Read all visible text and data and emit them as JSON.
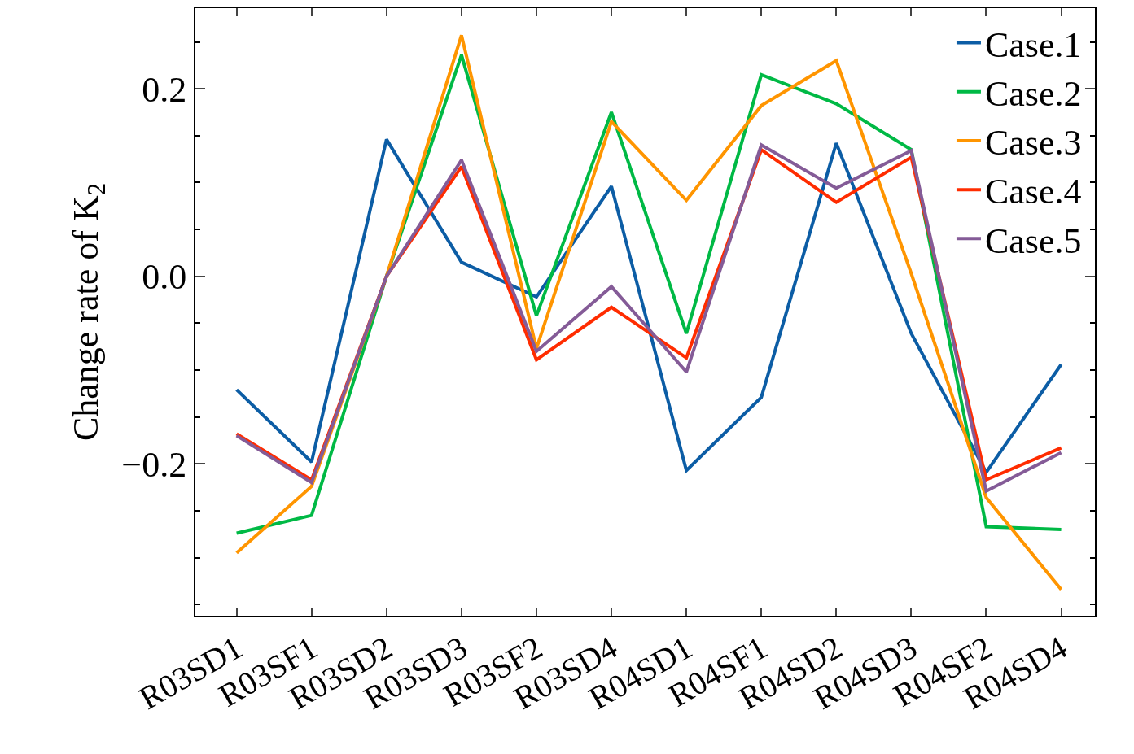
{
  "chart_data": {
    "type": "line",
    "ylabel": "Change rate of K$_{2}$",
    "categories": [
      "R03SD1",
      "R03SF1",
      "R03SD2",
      "R03SD3",
      "R03SF2",
      "R03SD4",
      "R04SD1",
      "R04SF1",
      "R04SD2",
      "R04SD3",
      "R04SF2",
      "R04SD4"
    ],
    "series": [
      {
        "name": "Case.1",
        "color": "#0c5da5",
        "values": [
          -0.121,
          -0.198,
          0.146,
          0.015,
          -0.022,
          0.096,
          -0.207,
          -0.129,
          0.142,
          -0.061,
          -0.209,
          -0.094
        ]
      },
      {
        "name": "Case.2",
        "color": "#00b945",
        "values": [
          -0.274,
          -0.255,
          0.0,
          0.236,
          -0.042,
          0.175,
          -0.061,
          0.215,
          0.184,
          0.135,
          -0.267,
          -0.27
        ]
      },
      {
        "name": "Case.3",
        "color": "#ff9500",
        "values": [
          -0.295,
          -0.224,
          0.0,
          0.257,
          -0.077,
          0.165,
          0.081,
          0.182,
          0.23,
          0.003,
          -0.236,
          -0.334
        ]
      },
      {
        "name": "Case.4",
        "color": "#ff2c00",
        "values": [
          -0.168,
          -0.217,
          0.0,
          0.117,
          -0.089,
          -0.033,
          -0.087,
          0.135,
          0.079,
          0.127,
          -0.217,
          -0.183
        ]
      },
      {
        "name": "Case.5",
        "color": "#845b97",
        "values": [
          -0.17,
          -0.22,
          0.0,
          0.124,
          -0.08,
          -0.011,
          -0.102,
          0.14,
          0.094,
          0.134,
          -0.229,
          -0.188
        ]
      }
    ],
    "ylim": [
      -0.362,
      0.286
    ],
    "yticks": [
      {
        "value": -0.35,
        "label": null
      },
      {
        "value": -0.3,
        "label": null
      },
      {
        "value": -0.25,
        "label": null
      },
      {
        "value": -0.2,
        "label": "−0.2"
      },
      {
        "value": -0.15,
        "label": null
      },
      {
        "value": -0.1,
        "label": null
      },
      {
        "value": -0.05,
        "label": null
      },
      {
        "value": 0.0,
        "label": "0.0"
      },
      {
        "value": 0.05,
        "label": null
      },
      {
        "value": 0.1,
        "label": null
      },
      {
        "value": 0.15,
        "label": null
      },
      {
        "value": 0.2,
        "label": "0.2"
      },
      {
        "value": 0.25,
        "label": null
      }
    ],
    "legend": "top right",
    "marker": "none",
    "line_style": "solid"
  }
}
